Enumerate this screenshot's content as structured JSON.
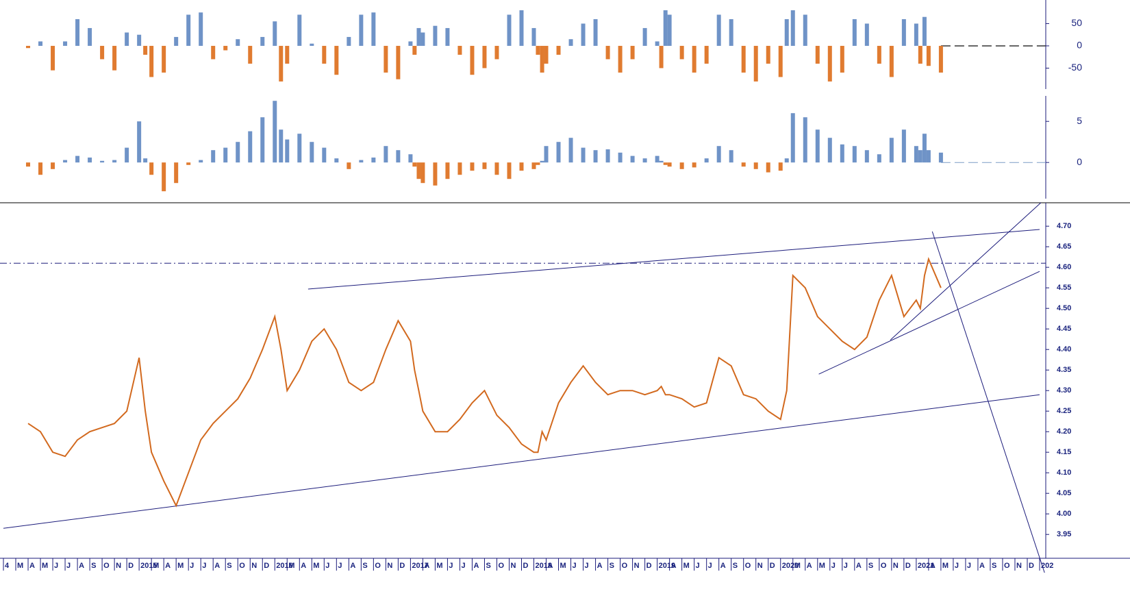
{
  "chart_data": [
    {
      "type": "bar",
      "positive_color": "#6f93c7",
      "negative_color": "#e07b30",
      "x": [
        2,
        3,
        4,
        5,
        6,
        7,
        8,
        9,
        10,
        11,
        11.5,
        12,
        13,
        14,
        15,
        16,
        17,
        18,
        19,
        20,
        21,
        22,
        22.5,
        23,
        24,
        25,
        26,
        27,
        28,
        29,
        30,
        31,
        32,
        33,
        33.33,
        33.67,
        34,
        35,
        36,
        37,
        38,
        39,
        40,
        41,
        42,
        43,
        43.33,
        43.67,
        44,
        45,
        46,
        47,
        48,
        49,
        50,
        51,
        52,
        53,
        53.33,
        53.67,
        54,
        55,
        56,
        57,
        58,
        59,
        60,
        61,
        62,
        63,
        63.5,
        64,
        65,
        66,
        67,
        68,
        69,
        70,
        71,
        72,
        73,
        74,
        74.33,
        74.67,
        75,
        76
      ],
      "values": [
        -5,
        10,
        -55,
        10,
        60,
        40,
        -30,
        -55,
        30,
        25,
        -20,
        -70,
        -60,
        20,
        70,
        75,
        -30,
        -10,
        15,
        -40,
        20,
        55,
        -80,
        -40,
        70,
        5,
        -40,
        -65,
        20,
        70,
        75,
        -60,
        -75,
        10,
        -20,
        40,
        30,
        45,
        40,
        -20,
        -65,
        -50,
        -30,
        70,
        80,
        40,
        -20,
        -60,
        -40,
        -20,
        15,
        50,
        60,
        -30,
        -60,
        -30,
        40,
        10,
        -50,
        80,
        70,
        -30,
        -60,
        -40,
        70,
        60,
        -60,
        -80,
        -40,
        -70,
        60,
        80,
        70,
        -40,
        -80,
        -60,
        60,
        50,
        -40,
        -70,
        60,
        50,
        -40,
        65,
        -45,
        -60
      ],
      "xlim": [
        0,
        84
      ],
      "ylim": [
        -97,
        103
      ],
      "yticks": [
        50,
        0,
        -50
      ]
    },
    {
      "type": "bar",
      "positive_color": "#6f93c7",
      "negative_color": "#e07b30",
      "x": [
        2,
        3,
        4,
        5,
        6,
        7,
        8,
        9,
        10,
        11,
        11.5,
        12,
        13,
        14,
        15,
        16,
        17,
        18,
        19,
        20,
        21,
        22,
        22.5,
        23,
        24,
        25,
        26,
        27,
        28,
        29,
        30,
        31,
        32,
        33,
        33.33,
        33.67,
        34,
        35,
        36,
        37,
        38,
        39,
        40,
        41,
        42,
        43,
        43.33,
        43.67,
        44,
        45,
        46,
        47,
        48,
        49,
        50,
        51,
        52,
        53,
        53.33,
        53.67,
        54,
        55,
        56,
        57,
        58,
        59,
        60,
        61,
        62,
        63,
        63.5,
        64,
        65,
        66,
        67,
        68,
        69,
        70,
        71,
        72,
        73,
        74,
        74.33,
        74.67,
        75,
        76
      ],
      "values": [
        -0.5,
        -1.5,
        -0.8,
        0.3,
        0.8,
        0.6,
        0.2,
        0.3,
        1.8,
        5,
        0.5,
        -1.5,
        -3.5,
        -2.5,
        -0.3,
        0.3,
        1.5,
        1.8,
        2.5,
        3.8,
        5.5,
        7.5,
        4,
        2.8,
        3.5,
        2.5,
        1.8,
        0.5,
        -0.8,
        0.3,
        0.6,
        2,
        1.5,
        1,
        -0.5,
        -2,
        -2.5,
        -2.8,
        -2,
        -1.5,
        -1,
        -0.8,
        -1.5,
        -2,
        -1,
        -0.8,
        -0.3,
        0.2,
        2,
        2.5,
        3,
        1.8,
        1.5,
        1.6,
        1.2,
        0.8,
        0.5,
        0.8,
        0.2,
        -0.3,
        -0.5,
        -0.8,
        -0.6,
        0.5,
        2,
        1.5,
        -0.5,
        -0.8,
        -1.2,
        -1,
        0.5,
        6,
        5.5,
        4,
        3,
        2.2,
        2,
        1.5,
        1,
        3,
        4,
        2,
        1.5,
        3.5,
        1.5,
        1.2
      ],
      "xlim": [
        0,
        84
      ],
      "ylim": [
        -4.4,
        8.1
      ],
      "yticks": [
        5,
        0
      ]
    },
    {
      "type": "line",
      "color": "#d2691e",
      "x": [
        2,
        3,
        4,
        5,
        6,
        7,
        8,
        9,
        10,
        11,
        11.5,
        12,
        13,
        14,
        15,
        16,
        17,
        18,
        19,
        20,
        21,
        22,
        22.5,
        23,
        24,
        25,
        26,
        27,
        28,
        29,
        30,
        31,
        32,
        33,
        33.33,
        33.67,
        34,
        35,
        36,
        37,
        38,
        39,
        40,
        41,
        42,
        43,
        43.33,
        43.67,
        44,
        45,
        46,
        47,
        48,
        49,
        50,
        51,
        52,
        53,
        53.33,
        53.67,
        54,
        55,
        56,
        57,
        58,
        59,
        60,
        61,
        62,
        63,
        63.5,
        64,
        65,
        66,
        67,
        68,
        69,
        70,
        71,
        72,
        73,
        74,
        74.33,
        74.67,
        75,
        76
      ],
      "values": [
        4.22,
        4.2,
        4.15,
        4.14,
        4.18,
        4.2,
        4.21,
        4.22,
        4.25,
        4.38,
        4.25,
        4.15,
        4.08,
        4.02,
        4.1,
        4.18,
        4.22,
        4.25,
        4.28,
        4.33,
        4.4,
        4.48,
        4.4,
        4.3,
        4.35,
        4.42,
        4.45,
        4.4,
        4.32,
        4.3,
        4.32,
        4.4,
        4.47,
        4.42,
        4.35,
        4.3,
        4.25,
        4.2,
        4.2,
        4.23,
        4.27,
        4.3,
        4.24,
        4.21,
        4.17,
        4.15,
        4.15,
        4.2,
        4.18,
        4.27,
        4.32,
        4.36,
        4.32,
        4.29,
        4.3,
        4.3,
        4.29,
        4.3,
        4.31,
        4.29,
        4.29,
        4.28,
        4.26,
        4.27,
        4.38,
        4.36,
        4.29,
        4.28,
        4.25,
        4.23,
        4.3,
        4.58,
        4.55,
        4.48,
        4.45,
        4.42,
        4.4,
        4.43,
        4.52,
        4.58,
        4.48,
        4.52,
        4.5,
        4.58,
        4.62,
        4.55
      ],
      "xlim": [
        0,
        84
      ],
      "ylim": [
        3.892,
        4.757
      ],
      "yticks": [
        {
          "value": 3.95,
          "label": "3.95"
        },
        {
          "value": 4,
          "label": "4.00"
        },
        {
          "value": 4.05,
          "label": "4.05"
        },
        {
          "value": 4.1,
          "label": "4.10"
        },
        {
          "value": 4.15,
          "label": "4.15"
        },
        {
          "value": 4.2,
          "label": "4.20"
        },
        {
          "value": 4.25,
          "label": "4.25"
        },
        {
          "value": 4.3,
          "label": "4.30"
        },
        {
          "value": 4.35,
          "label": "4.35"
        },
        {
          "value": 4.4,
          "label": "4.40"
        },
        {
          "value": 4.45,
          "label": "4.45"
        },
        {
          "value": 4.5,
          "label": "4.50"
        },
        {
          "value": 4.55,
          "label": "4.55"
        },
        {
          "value": 4.6,
          "label": "4.60"
        },
        {
          "value": 4.65,
          "label": "4.65"
        },
        {
          "value": 4.7,
          "label": "4.70"
        }
      ],
      "hline": 4.61,
      "trendlines": [
        [
          [
            0,
            3.965
          ],
          [
            84,
            4.29
          ]
        ],
        [
          [
            24.7,
            4.547
          ],
          [
            84,
            4.692
          ]
        ],
        [
          [
            66.1,
            4.34
          ],
          [
            84,
            4.59
          ]
        ],
        [
          [
            71.9,
            4.423
          ],
          [
            84.1,
            4.757
          ]
        ],
        [
          [
            75.3,
            4.687
          ],
          [
            84.4,
            3.857
          ]
        ]
      ],
      "xticks": [
        {
          "value": 0,
          "label": "4"
        },
        {
          "value": 1,
          "label": "M"
        },
        {
          "value": 2,
          "label": "A"
        },
        {
          "value": 3,
          "label": "M"
        },
        {
          "value": 4,
          "label": "J"
        },
        {
          "value": 5,
          "label": "J"
        },
        {
          "value": 6,
          "label": "A"
        },
        {
          "value": 7,
          "label": "S"
        },
        {
          "value": 8,
          "label": "O"
        },
        {
          "value": 9,
          "label": "N"
        },
        {
          "value": 10,
          "label": "D"
        },
        {
          "value": 11,
          "label": "2015"
        },
        {
          "value": 12,
          "label": "M"
        },
        {
          "value": 13,
          "label": "A"
        },
        {
          "value": 14,
          "label": "M"
        },
        {
          "value": 15,
          "label": "J"
        },
        {
          "value": 16,
          "label": "J"
        },
        {
          "value": 17,
          "label": "A"
        },
        {
          "value": 18,
          "label": "S"
        },
        {
          "value": 19,
          "label": "O"
        },
        {
          "value": 20,
          "label": "N"
        },
        {
          "value": 21,
          "label": "D"
        },
        {
          "value": 22,
          "label": "2016"
        },
        {
          "value": 23,
          "label": "M"
        },
        {
          "value": 24,
          "label": "A"
        },
        {
          "value": 25,
          "label": "M"
        },
        {
          "value": 26,
          "label": "J"
        },
        {
          "value": 27,
          "label": "J"
        },
        {
          "value": 28,
          "label": "A"
        },
        {
          "value": 29,
          "label": "S"
        },
        {
          "value": 30,
          "label": "O"
        },
        {
          "value": 31,
          "label": "N"
        },
        {
          "value": 32,
          "label": "D"
        },
        {
          "value": 33,
          "label": "2017"
        },
        {
          "value": 34,
          "label": "A"
        },
        {
          "value": 35,
          "label": "M"
        },
        {
          "value": 36,
          "label": "J"
        },
        {
          "value": 37,
          "label": "J"
        },
        {
          "value": 38,
          "label": "A"
        },
        {
          "value": 39,
          "label": "S"
        },
        {
          "value": 40,
          "label": "O"
        },
        {
          "value": 41,
          "label": "N"
        },
        {
          "value": 42,
          "label": "D"
        },
        {
          "value": 43,
          "label": "2018"
        },
        {
          "value": 44,
          "label": "A"
        },
        {
          "value": 45,
          "label": "M"
        },
        {
          "value": 46,
          "label": "J"
        },
        {
          "value": 47,
          "label": "J"
        },
        {
          "value": 48,
          "label": "A"
        },
        {
          "value": 49,
          "label": "S"
        },
        {
          "value": 50,
          "label": "O"
        },
        {
          "value": 51,
          "label": "N"
        },
        {
          "value": 52,
          "label": "D"
        },
        {
          "value": 53,
          "label": "2019"
        },
        {
          "value": 54,
          "label": "A"
        },
        {
          "value": 55,
          "label": "M"
        },
        {
          "value": 56,
          "label": "J"
        },
        {
          "value": 57,
          "label": "J"
        },
        {
          "value": 58,
          "label": "A"
        },
        {
          "value": 59,
          "label": "S"
        },
        {
          "value": 60,
          "label": "O"
        },
        {
          "value": 61,
          "label": "N"
        },
        {
          "value": 62,
          "label": "D"
        },
        {
          "value": 63,
          "label": "2020"
        },
        {
          "value": 64,
          "label": "M"
        },
        {
          "value": 65,
          "label": "A"
        },
        {
          "value": 66,
          "label": "M"
        },
        {
          "value": 67,
          "label": "J"
        },
        {
          "value": 68,
          "label": "J"
        },
        {
          "value": 69,
          "label": "A"
        },
        {
          "value": 70,
          "label": "S"
        },
        {
          "value": 71,
          "label": "O"
        },
        {
          "value": 72,
          "label": "N"
        },
        {
          "value": 73,
          "label": "D"
        },
        {
          "value": 74,
          "label": "2021"
        },
        {
          "value": 75,
          "label": "A"
        },
        {
          "value": 76,
          "label": "M"
        },
        {
          "value": 77,
          "label": "J"
        },
        {
          "value": 78,
          "label": "J"
        },
        {
          "value": 79,
          "label": "A"
        },
        {
          "value": 80,
          "label": "S"
        },
        {
          "value": 81,
          "label": "O"
        },
        {
          "value": 82,
          "label": "N"
        },
        {
          "value": 83,
          "label": "D"
        },
        {
          "value": 84,
          "label": "202"
        }
      ]
    }
  ]
}
